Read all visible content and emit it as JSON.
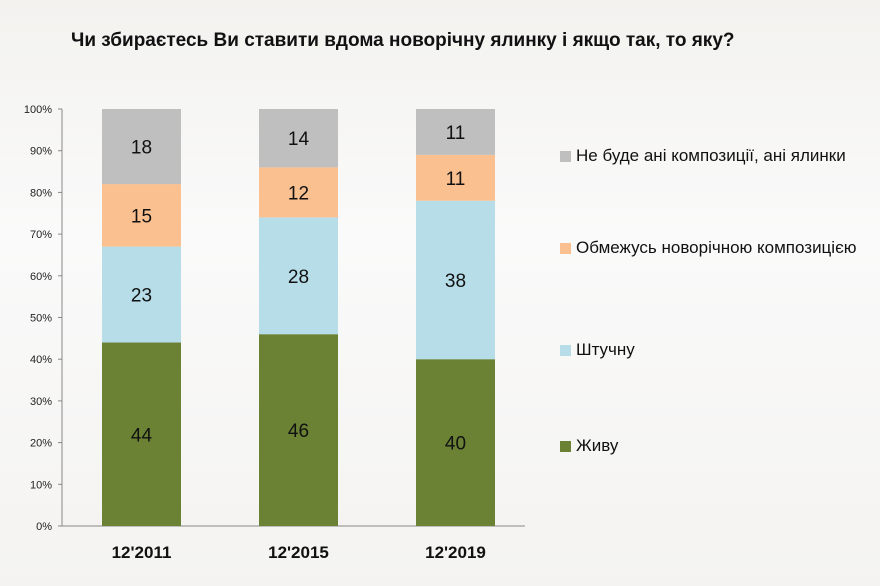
{
  "chart_data": {
    "type": "bar",
    "stacked": true,
    "title": "Чи збираєтесь Ви ставити вдома новорічну ялинку і якщо так, то яку?",
    "categories": [
      "12'2011",
      "12'2015",
      "12'2019"
    ],
    "ylim": [
      0,
      100
    ],
    "yticks": [
      "0%",
      "10%",
      "20%",
      "30%",
      "40%",
      "50%",
      "60%",
      "70%",
      "80%",
      "90%",
      "100%"
    ],
    "grid": false,
    "legend_placement": "right",
    "series": [
      {
        "name": "Живу",
        "values": [
          44,
          46,
          40
        ],
        "color": "#6b8235"
      },
      {
        "name": "Штучну",
        "values": [
          23,
          28,
          38
        ],
        "color": "#b7dde8"
      },
      {
        "name": "Обмежусь новорічною композицією",
        "values": [
          15,
          12,
          11
        ],
        "color": "#fac090"
      },
      {
        "name": "Не буде ані композиції, ані ялинки",
        "values": [
          18,
          14,
          11
        ],
        "color": "#bfbfbf"
      }
    ]
  }
}
